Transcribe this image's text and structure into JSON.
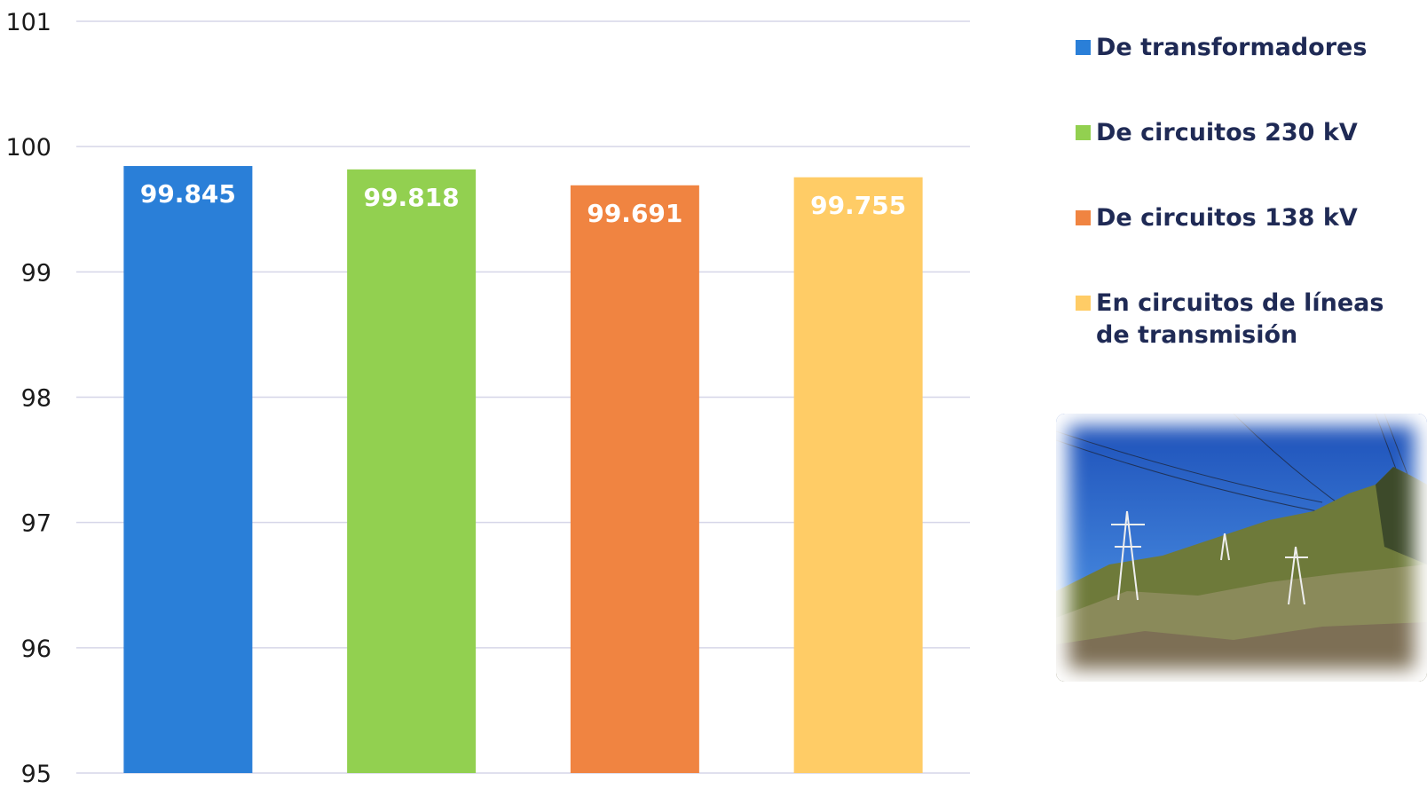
{
  "chart_data": {
    "type": "bar",
    "categories": [
      "De transformadores",
      "De circuitos 230 kV",
      "De circuitos 138 kV",
      "En circuitos de líneas de transmisión"
    ],
    "values": [
      99.845,
      99.818,
      99.691,
      99.755
    ],
    "value_labels": [
      "99.845",
      "99.818",
      "99.691",
      "99.755"
    ],
    "colors": [
      "#2a7fd8",
      "#92d050",
      "#f08441",
      "#ffcc66"
    ],
    "ylim": [
      95,
      101
    ],
    "yticks": [
      "95",
      "96",
      "97",
      "98",
      "99",
      "100",
      "101"
    ],
    "grid": true,
    "legend_position": "right",
    "title": "",
    "xlabel": "",
    "ylabel": ""
  },
  "legend": {
    "items": [
      {
        "label": "De transformadores",
        "color": "#2a7fd8"
      },
      {
        "label": "De circuitos 230 kV",
        "color": "#92d050"
      },
      {
        "label": "De circuitos 138 kV",
        "color": "#f08441"
      },
      {
        "label": "En circuitos de líneas de transmisión",
        "color": "#ffcc66"
      }
    ]
  },
  "photo": {
    "subject": "transmission-towers-photo"
  }
}
